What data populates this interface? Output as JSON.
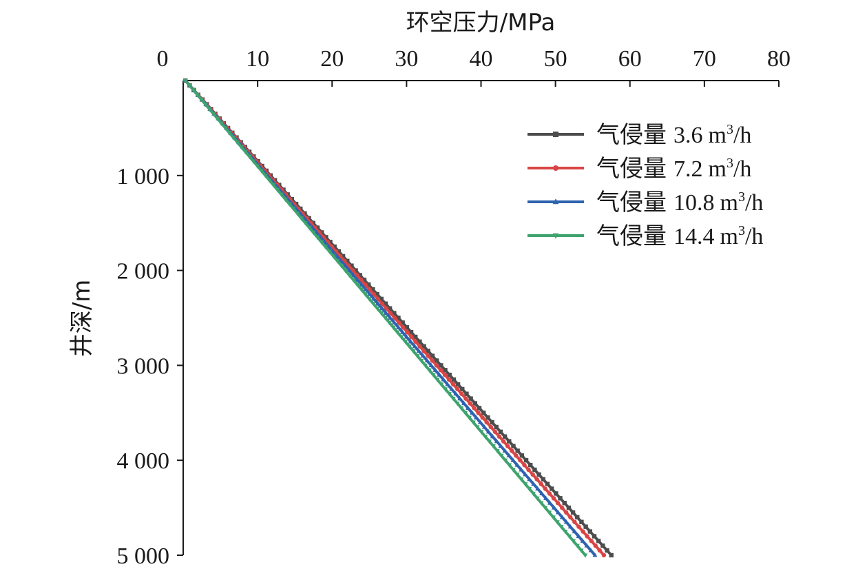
{
  "chart_data": {
    "type": "line",
    "xlabel": "环空压力/MPa",
    "ylabel": "井深/m",
    "xlim": [
      0,
      80
    ],
    "ylim": [
      0,
      5000
    ],
    "x_axis_position": "top",
    "y_axis_inverted": true,
    "x_ticks": [
      "0",
      "10",
      "20",
      "30",
      "40",
      "50",
      "60",
      "70",
      "80"
    ],
    "x_tick_values": [
      0,
      10,
      20,
      30,
      40,
      50,
      60,
      70,
      80
    ],
    "y_ticks": [
      "1 000",
      "2 000",
      "3 000",
      "4 000",
      "5 000"
    ],
    "y_tick_values": [
      1000,
      2000,
      3000,
      4000,
      5000
    ],
    "grid": false,
    "legend_position": "top-right",
    "series": [
      {
        "name": "气侵量",
        "rate": "3.6",
        "unit_base": "m",
        "unit_sup": "3",
        "unit_tail": "/h",
        "color": "#4d4d4d",
        "marker": "square",
        "x_start": 0.3,
        "x_end": 57.5,
        "depth_start": 0,
        "depth_end": 5000
      },
      {
        "name": "气侵量",
        "rate": "7.2",
        "unit_base": "m",
        "unit_sup": "3",
        "unit_tail": "/h",
        "color": "#d94545",
        "marker": "circle",
        "x_start": 0.3,
        "x_end": 56.5,
        "depth_start": 0,
        "depth_end": 5000
      },
      {
        "name": "气侵量",
        "rate": "10.8",
        "unit_base": "m",
        "unit_sup": "3",
        "unit_tail": "/h",
        "color": "#2e63b0",
        "marker": "triangle",
        "x_start": 0.3,
        "x_end": 55.3,
        "depth_start": 0,
        "depth_end": 5000
      },
      {
        "name": "气侵量",
        "rate": "14.4",
        "unit_base": "m",
        "unit_sup": "3",
        "unit_tail": "/h",
        "color": "#3fa36e",
        "marker": "triangle-down",
        "x_start": 0.3,
        "x_end": 54.0,
        "depth_start": 0,
        "depth_end": 5000
      }
    ]
  }
}
